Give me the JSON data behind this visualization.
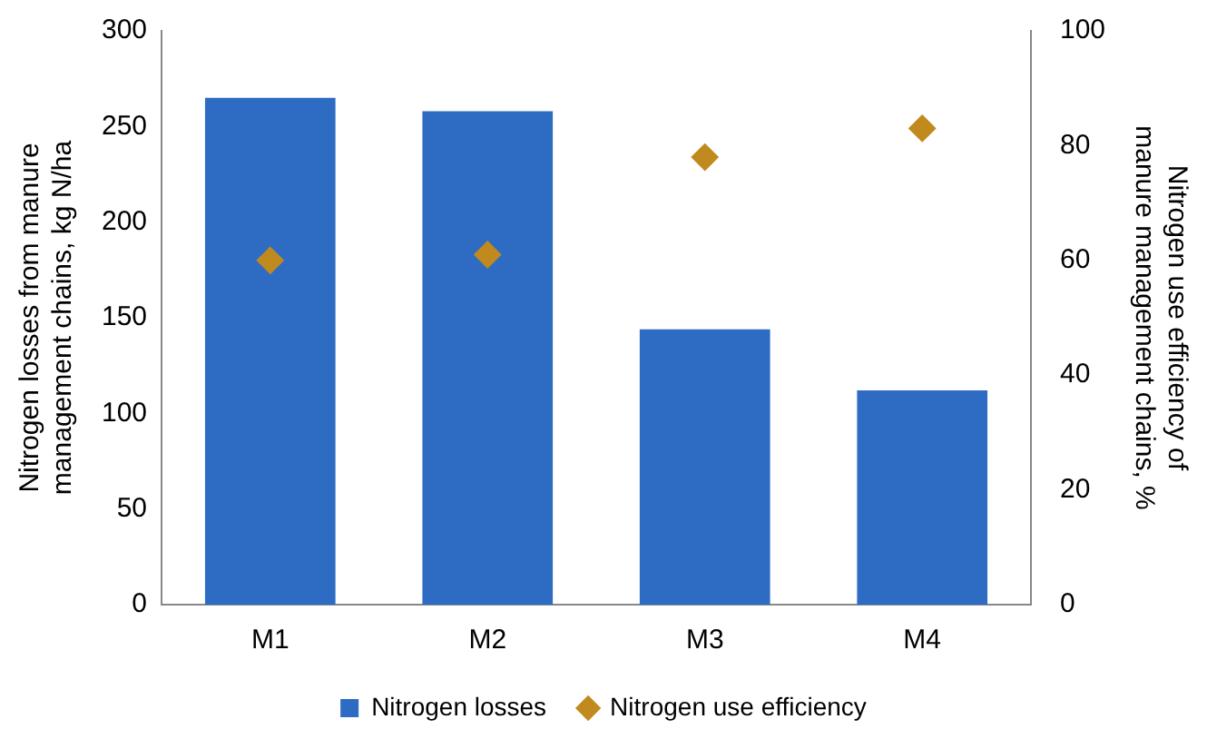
{
  "chart_data": {
    "type": "bar",
    "categories": [
      "M1",
      "M2",
      "M3",
      "M4"
    ],
    "ylabel": "Nitrogen losses from manure management chains, kg N/ha",
    "y2label": "Nitrogen use efficiency of manure management chains, %",
    "ylim": [
      0,
      300
    ],
    "yticks": [
      0,
      50,
      100,
      150,
      200,
      250,
      300
    ],
    "y2lim": [
      0,
      100
    ],
    "y2ticks": [
      0,
      20,
      40,
      60,
      80,
      100
    ],
    "series": [
      {
        "name": "Nitrogen losses",
        "color": "#2e6cc4",
        "values": [
          265,
          258,
          144,
          112
        ]
      },
      {
        "name": "Nitrogen use efficiency",
        "type": "scatter",
        "axis": "y2",
        "marker": "diamond",
        "color": "#c08a1e",
        "values": [
          60,
          61,
          78,
          83
        ]
      }
    ],
    "legend": "bottom",
    "grid": false
  }
}
